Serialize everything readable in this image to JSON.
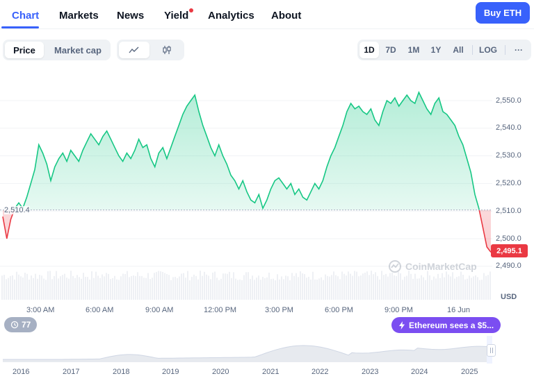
{
  "tabs": [
    "Chart",
    "Markets",
    "News",
    "Yield",
    "Analytics",
    "About"
  ],
  "buy_button": "Buy ETH",
  "view_toggle": [
    "Price",
    "Market cap"
  ],
  "chart_type_icons": [
    "line-chart-icon",
    "candlestick-icon"
  ],
  "timeframes": [
    "1D",
    "7D",
    "1M",
    "1Y",
    "All"
  ],
  "log_label": "LOG",
  "more_icon": "···",
  "colors": {
    "accent": "#3861fb",
    "up": "#16c784",
    "down": "#ea3943",
    "news": "#7b4ef1"
  },
  "chart_data": {
    "type": "area",
    "title": "",
    "xlabel": "",
    "ylabel": "USD",
    "x_ticks": [
      "3:00 AM",
      "6:00 AM",
      "9:00 AM",
      "12:00 PM",
      "3:00 PM",
      "6:00 PM",
      "9:00 PM",
      "16 Jun"
    ],
    "y_ticks": [
      "2,550.0",
      "2,540.0",
      "2,530.0",
      "2,520.0",
      "2,510.0",
      "2,500.0",
      "2,490.0"
    ],
    "ylim": [
      2485,
      2557
    ],
    "baseline": 2510.4,
    "open_price_label": "2,510.4",
    "current_price_label": "2,495.1",
    "series": [
      {
        "values": [
          2508,
          2500,
          2507,
          2511,
          2513,
          2511,
          2515,
          2520,
          2525,
          2534,
          2531,
          2527,
          2521,
          2526,
          2529,
          2531,
          2528,
          2532,
          2530,
          2528,
          2532,
          2535,
          2538,
          2536,
          2534,
          2537,
          2539,
          2536,
          2533,
          2530,
          2528,
          2531,
          2529,
          2532,
          2536,
          2533,
          2534,
          2529,
          2526,
          2531,
          2533,
          2529,
          2533,
          2537,
          2541,
          2545,
          2548,
          2550,
          2552,
          2546,
          2541,
          2537,
          2533,
          2530,
          2534,
          2530,
          2527,
          2523,
          2521,
          2518,
          2521,
          2517,
          2514,
          2513,
          2516,
          2511,
          2514,
          2518,
          2521,
          2522,
          2520,
          2518,
          2520,
          2516,
          2518,
          2515,
          2514,
          2517,
          2520,
          2518,
          2521,
          2526,
          2530,
          2533,
          2537,
          2541,
          2546,
          2549,
          2547,
          2548,
          2546,
          2545,
          2547,
          2543,
          2541,
          2546,
          2550,
          2549,
          2551,
          2548,
          2550,
          2552,
          2550,
          2549,
          2553,
          2550,
          2547,
          2545,
          2549,
          2551,
          2546,
          2545,
          2543,
          2541,
          2537,
          2534,
          2529,
          2524,
          2516,
          2511,
          2504,
          2497,
          2495.1
        ]
      }
    ],
    "navigator_years": [
      "2016",
      "2017",
      "2018",
      "2019",
      "2020",
      "2021",
      "2022",
      "2023",
      "2024",
      "2025"
    ]
  },
  "events_count": "77",
  "news_text": "Ethereum sees a $5...",
  "watermark": "CoinMarketCap"
}
